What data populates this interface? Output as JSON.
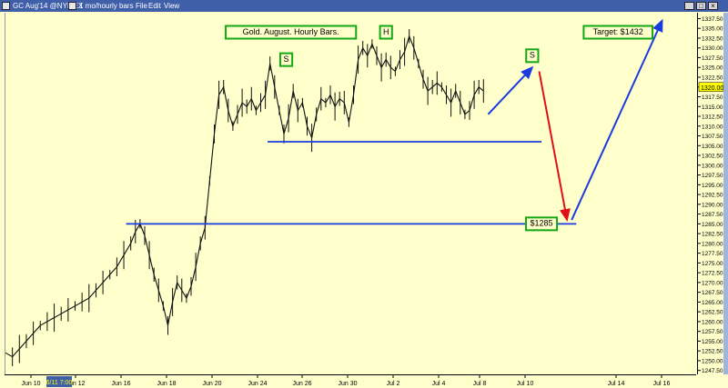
{
  "window": {
    "title": "GC Aug'14 @NYMEX",
    "timeframe": "1 mo/hourly bars",
    "menu": [
      "File",
      "Edit",
      "View"
    ]
  },
  "chart_data": {
    "type": "line",
    "title": "Gold. August. Hourly Bars.",
    "y_ticks": [
      "1337.50",
      "1335.00",
      "1332.50",
      "1330.00",
      "1327.50",
      "1325.00",
      "1322.50",
      "1320.00",
      "1317.50",
      "1315.00",
      "1312.50",
      "1310.00",
      "1307.50",
      "1305.00",
      "1302.50",
      "1300.00",
      "1297.50",
      "1295.00",
      "1292.50",
      "1290.00",
      "1287.50",
      "1285.00",
      "1282.50",
      "1280.00",
      "1277.50",
      "1275.00",
      "1272.50",
      "1270.00",
      "1267.50",
      "1265.00",
      "1262.50",
      "1260.00",
      "1257.50",
      "1255.00",
      "1252.50",
      "1250.00",
      "1247.50"
    ],
    "ylim": [
      1246.5,
      1339.0
    ],
    "last_price": "1320.00",
    "x_ticks": [
      "Jun 10",
      "Jun 12",
      "Jun 16",
      "Jun 18",
      "Jun 20",
      "Jun 24",
      "Jun 26",
      "Jun 30",
      "Jul 2",
      "Jul 4",
      "Jul 8",
      "Jul 10",
      "Jul 14",
      "Jul 16"
    ],
    "cursor_label": "6/11 7:00",
    "price_path": [
      [
        0,
        1252
      ],
      [
        3,
        1251
      ],
      [
        6,
        1253
      ],
      [
        9,
        1255
      ],
      [
        12,
        1257
      ],
      [
        15,
        1259
      ],
      [
        18,
        1260
      ],
      [
        21,
        1261
      ],
      [
        24,
        1262
      ],
      [
        27,
        1263
      ],
      [
        30,
        1264
      ],
      [
        33,
        1265
      ],
      [
        36,
        1266
      ],
      [
        39,
        1268
      ],
      [
        42,
        1270
      ],
      [
        45,
        1272
      ],
      [
        48,
        1274
      ],
      [
        51,
        1277
      ],
      [
        54,
        1280
      ],
      [
        56,
        1283
      ],
      [
        58,
        1285
      ],
      [
        60,
        1282
      ],
      [
        62,
        1277
      ],
      [
        64,
        1272
      ],
      [
        66,
        1268
      ],
      [
        68,
        1264
      ],
      [
        70,
        1259
      ],
      [
        72,
        1265
      ],
      [
        74,
        1270
      ],
      [
        76,
        1268
      ],
      [
        78,
        1266
      ],
      [
        80,
        1269
      ],
      [
        82,
        1274
      ],
      [
        84,
        1280
      ],
      [
        86,
        1284
      ],
      [
        88,
        1296
      ],
      [
        90,
        1308
      ],
      [
        92,
        1318
      ],
      [
        94,
        1320
      ],
      [
        96,
        1314
      ],
      [
        98,
        1310
      ],
      [
        100,
        1313
      ],
      [
        102,
        1316
      ],
      [
        104,
        1315
      ],
      [
        106,
        1317
      ],
      [
        108,
        1314
      ],
      [
        110,
        1316
      ],
      [
        112,
        1318
      ],
      [
        114,
        1326
      ],
      [
        116,
        1320
      ],
      [
        118,
        1314
      ],
      [
        120,
        1308
      ],
      [
        122,
        1312
      ],
      [
        124,
        1319
      ],
      [
        126,
        1314
      ],
      [
        128,
        1316
      ],
      [
        130,
        1310
      ],
      [
        132,
        1307
      ],
      [
        134,
        1313
      ],
      [
        136,
        1317
      ],
      [
        138,
        1316
      ],
      [
        140,
        1318
      ],
      [
        142,
        1315
      ],
      [
        144,
        1317
      ],
      [
        146,
        1316
      ],
      [
        148,
        1311
      ],
      [
        150,
        1318
      ],
      [
        152,
        1327
      ],
      [
        154,
        1330
      ],
      [
        156,
        1328
      ],
      [
        158,
        1331
      ],
      [
        160,
        1328
      ],
      [
        162,
        1325
      ],
      [
        164,
        1327
      ],
      [
        166,
        1325
      ],
      [
        168,
        1324
      ],
      [
        170,
        1327
      ],
      [
        172,
        1329
      ],
      [
        174,
        1333
      ],
      [
        176,
        1330
      ],
      [
        178,
        1326
      ],
      [
        180,
        1322
      ],
      [
        182,
        1319
      ],
      [
        184,
        1320
      ],
      [
        186,
        1321
      ],
      [
        188,
        1320
      ],
      [
        190,
        1318
      ],
      [
        192,
        1316
      ],
      [
        194,
        1319
      ],
      [
        196,
        1316
      ],
      [
        198,
        1313
      ],
      [
        200,
        1314
      ],
      [
        202,
        1318
      ],
      [
        204,
        1320
      ],
      [
        206,
        1319
      ]
    ],
    "horizontal_lines": [
      {
        "price": 1306.0,
        "x_start": 113,
        "x_end": 231,
        "color": "#1a3be0"
      },
      {
        "price": 1285.0,
        "x_start": 52,
        "x_end": 246,
        "color": "#1a3be0"
      }
    ],
    "arrows": [
      {
        "from": [
          208,
          1313
        ],
        "to": [
          227,
          1325
        ],
        "color": "#1a3be0"
      },
      {
        "from": [
          230,
          1324
        ],
        "to": [
          242,
          1286
        ],
        "color": "#e01018"
      },
      {
        "from": [
          244,
          1286
        ],
        "to": [
          283,
          1337
        ],
        "color": "#1a3be0"
      }
    ],
    "annotations": [
      {
        "text": "Gold. August. Hourly Bars.",
        "x": 123,
        "price": 1334
      },
      {
        "text": "S",
        "x": 121,
        "price": 1327
      },
      {
        "text": "H",
        "x": 164,
        "price": 1334
      },
      {
        "text": "S",
        "x": 227,
        "price": 1328
      },
      {
        "text": "Target: $1432",
        "x": 264,
        "price": 1334
      },
      {
        "text": "$1285",
        "x": 231,
        "price": 1285
      }
    ]
  }
}
